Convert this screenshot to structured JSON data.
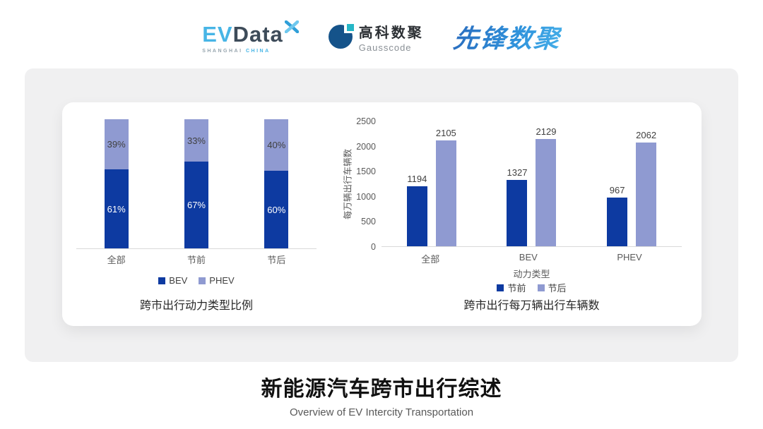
{
  "header": {
    "evdata": {
      "ev": "EV",
      "data": "Data",
      "sub1": "SHANGHAI",
      "sub2": "CHINA",
      "blue": "#47b5e6",
      "dark": "#3d4b59"
    },
    "gausscode": {
      "cn": "高科数聚",
      "en": "Gausscode",
      "blue": "#15538a",
      "teal": "#26b7c7"
    },
    "xianfeng": {
      "text": "先锋数聚",
      "blue": "#2f93dc"
    }
  },
  "chart_data": [
    {
      "type": "bar",
      "variant": "stacked-percent",
      "categories": [
        "全部",
        "节前",
        "节后"
      ],
      "series": [
        {
          "name": "BEV",
          "values": [
            61,
            67,
            60
          ],
          "color": "#0d3aa1",
          "label_color": "#ffffff",
          "label_suffix": "%"
        },
        {
          "name": "PHEV",
          "values": [
            39,
            33,
            40
          ],
          "color": "#8f9ad1",
          "label_color": "#404040",
          "label_suffix": "%"
        }
      ],
      "title": "跨市出行动力类型比例",
      "xlabel": "",
      "ylabel": "",
      "ylim": [
        0,
        100
      ],
      "grid": false,
      "legend_position": "bottom"
    },
    {
      "type": "bar",
      "variant": "grouped",
      "categories": [
        "全部",
        "BEV",
        "PHEV"
      ],
      "series": [
        {
          "name": "节前",
          "values": [
            1194,
            1327,
            967
          ],
          "color": "#0d3aa1"
        },
        {
          "name": "节后",
          "values": [
            2105,
            2129,
            2062
          ],
          "color": "#8f9ad1"
        }
      ],
      "title": "跨市出行每万辆出行车辆数",
      "xlabel": "动力类型",
      "ylabel": "每万辆出行车辆数",
      "yticks": [
        0,
        500,
        1000,
        1500,
        2000,
        2500
      ],
      "ylim": [
        0,
        2500
      ],
      "grid": false,
      "legend_position": "bottom",
      "axis_color": "#d9d9d9"
    }
  ],
  "footer": {
    "title": "新能源汽车跨市出行综述",
    "subtitle": "Overview of EV Intercity Transportation"
  }
}
